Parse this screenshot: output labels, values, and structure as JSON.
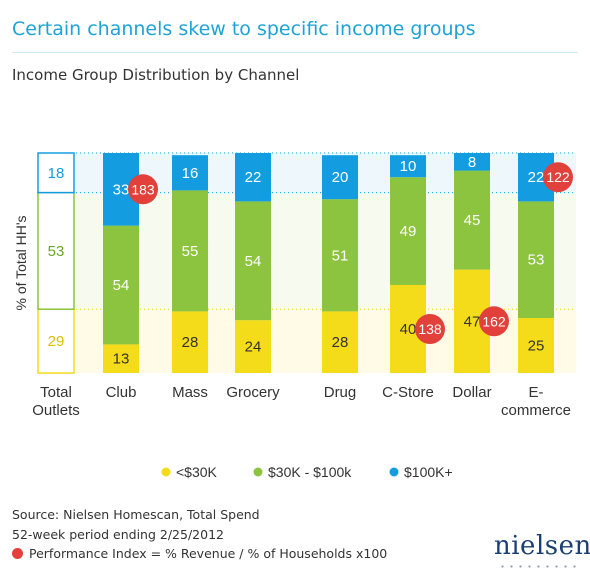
{
  "title": "Certain channels skew to specific income groups",
  "chart_data": {
    "type": "bar",
    "stacked": true,
    "title": "Income Group Distribution by Channel",
    "ylabel": "% of Total HH's",
    "ylim": [
      0,
      100
    ],
    "categories": [
      "Total Outlets",
      "Club",
      "Mass",
      "Grocery",
      "Drug",
      "C-Store",
      "Dollar",
      "E-commerce"
    ],
    "category_labels": [
      [
        "Total",
        "Outlets"
      ],
      [
        "Club"
      ],
      [
        "Mass"
      ],
      [
        "Grocery"
      ],
      [
        "Drug"
      ],
      [
        "C-Store"
      ],
      [
        "Dollar"
      ],
      [
        "E-",
        "commerce"
      ]
    ],
    "series": [
      {
        "name": "<$30K",
        "color": "#f5dc1a",
        "values": [
          29,
          13,
          28,
          24,
          28,
          40,
          47,
          25
        ]
      },
      {
        "name": "$30K - $100k",
        "color": "#8cc43f",
        "values": [
          53,
          54,
          55,
          54,
          51,
          49,
          45,
          53
        ]
      },
      {
        "name": "$100K+",
        "color": "#139de0",
        "values": [
          18,
          33,
          16,
          22,
          20,
          10,
          8,
          22
        ]
      }
    ],
    "performance_index": [
      {
        "category": "Club",
        "series": "$100K+",
        "value": 183
      },
      {
        "category": "C-Store",
        "series": "<$30K",
        "value": 138
      },
      {
        "category": "Dollar",
        "series": "<$30K",
        "value": 162
      },
      {
        "category": "E-commerce",
        "series": "$100K+",
        "value": 122
      }
    ],
    "legend_position": "bottom"
  },
  "source": {
    "line1": "Source: Nielsen Homescan, Total Spend",
    "line2": "52-week period ending 2/25/2012",
    "line3": "Performance Index = % Revenue / % of Households x100"
  },
  "logo": "nielsen"
}
